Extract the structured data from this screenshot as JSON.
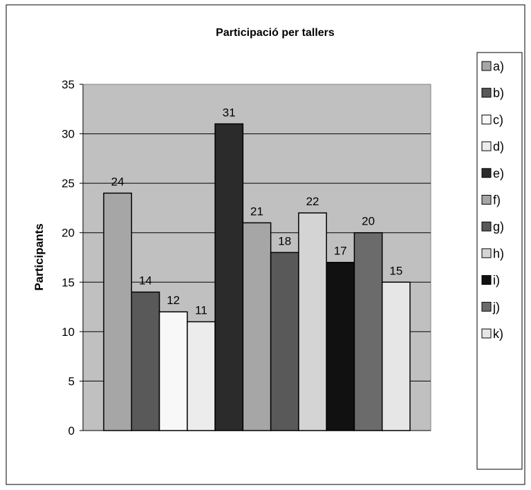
{
  "chart_data": {
    "type": "bar",
    "title": "Participació per tallers",
    "xlabel": "",
    "ylabel": "Participants",
    "ylim": [
      0,
      35
    ],
    "yticks": [
      0,
      5,
      10,
      15,
      20,
      25,
      30,
      35
    ],
    "grid": true,
    "legend_position": "right",
    "series": [
      {
        "name": "a)",
        "value": 24,
        "color": "#a6a6a6"
      },
      {
        "name": "b)",
        "value": 14,
        "color": "#595959"
      },
      {
        "name": "c)",
        "value": 12,
        "color": "#f8f8f8"
      },
      {
        "name": "d)",
        "value": 11,
        "color": "#ececec"
      },
      {
        "name": "e)",
        "value": 31,
        "color": "#2b2b2b"
      },
      {
        "name": "f)",
        "value": 21,
        "color": "#a6a6a6"
      },
      {
        "name": "g)",
        "value": 18,
        "color": "#595959"
      },
      {
        "name": "h)",
        "value": 22,
        "color": "#d4d4d4"
      },
      {
        "name": "i)",
        "value": 17,
        "color": "#111111"
      },
      {
        "name": "j)",
        "value": 20,
        "color": "#6b6b6b"
      },
      {
        "name": "k)",
        "value": 15,
        "color": "#e6e6e6"
      }
    ],
    "plot_background": "#c0c0c0"
  }
}
